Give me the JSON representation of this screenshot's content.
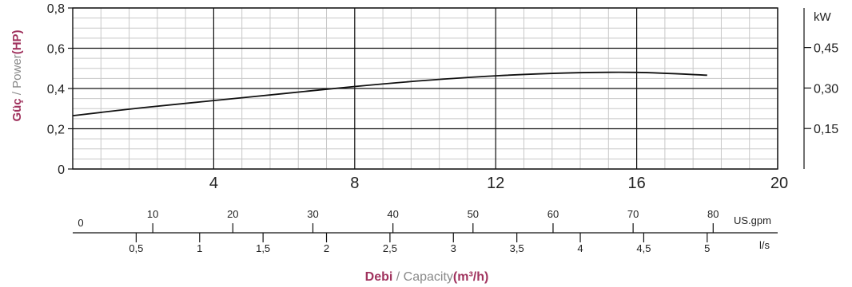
{
  "chart_data": {
    "type": "line",
    "y_label": {
      "accent": "Güç",
      "separator": " / ",
      "grey": "Power",
      "unit": "(HP)"
    },
    "y_ticks": [
      "0",
      "0,2",
      "0,4",
      "0,6",
      "0,8"
    ],
    "y_tick_values": [
      0,
      0.2,
      0.4,
      0.6,
      0.8
    ],
    "ylim": [
      0,
      0.8
    ],
    "kw_axis": {
      "title": "kW",
      "ticks": [
        "0,15",
        "0,30",
        "0,45"
      ],
      "values": [
        0.15,
        0.3,
        0.45
      ]
    },
    "x_ticks": [
      "4",
      "8",
      "12",
      "16",
      "20"
    ],
    "x_tick_values": [
      4,
      8,
      12,
      16,
      20
    ],
    "xlim": [
      0,
      20
    ],
    "gpm_axis": {
      "unit": "US.gpm",
      "ticks": [
        "0",
        "10",
        "20",
        "30",
        "40",
        "50",
        "60",
        "70",
        "80"
      ],
      "values": [
        0,
        10,
        20,
        30,
        40,
        50,
        60,
        70,
        80
      ]
    },
    "ls_axis": {
      "unit": "l/s",
      "ticks": [
        "0,5",
        "1",
        "1,5",
        "2",
        "2,5",
        "3",
        "3,5",
        "4",
        "4,5",
        "5"
      ],
      "values": [
        0.5,
        1,
        1.5,
        2,
        2.5,
        3,
        3.5,
        4,
        4.5,
        5
      ]
    },
    "x_label": {
      "accent": "Debi",
      "separator": " / ",
      "grey": "Capacity",
      "unit": "(m³/h)"
    },
    "series": [
      {
        "x": [
          0,
          2,
          4,
          6,
          8,
          10,
          12,
          14,
          16,
          18
        ],
        "y": [
          0.265,
          0.305,
          0.34,
          0.375,
          0.41,
          0.44,
          0.463,
          0.477,
          0.48,
          0.466
        ]
      }
    ],
    "grid": true,
    "colors": {
      "line": "#111111",
      "accent": "#a0335e",
      "grey_text": "#8a8a8a",
      "minor_grid": "#c8c8c8",
      "major_grid": "#111111"
    }
  }
}
